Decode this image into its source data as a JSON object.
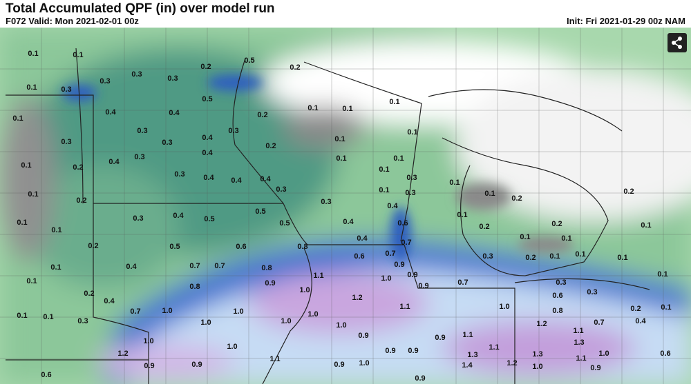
{
  "header": {
    "title": "Total Accumulated QPF (in) over model run",
    "valid": "F072 Valid: Mon 2021-02-01 00z",
    "init": "Init: Fri 2021-01-29 00z NAM"
  },
  "map": {
    "labels": [
      "0.1",
      "0.1",
      "0.3",
      "0.2",
      "0.5",
      "0.2",
      "0.1",
      "0.3",
      "0.3",
      "0.3",
      "0.5",
      "0.1",
      "0.4",
      "0.4",
      "0.2",
      "0.1",
      "0.1",
      "0.1",
      "0.3",
      "0.3",
      "0.3",
      "0.4",
      "0.1",
      "0.3",
      "0.4",
      "0.2",
      "0.1",
      "0.1",
      "0.2",
      "0.4",
      "0.3",
      "0.1",
      "0.1",
      "0.1",
      "0.3",
      "0.4",
      "0.4",
      "0.4",
      "0.3",
      "0.3",
      "0.1",
      "0.1",
      "0.1",
      "0.3",
      "0.1",
      "0.2",
      "0.2",
      "0.2",
      "0.3",
      "0.4",
      "0.1",
      "0.1",
      "0.3",
      "0.4",
      "0.5",
      "0.5",
      "0.5",
      "0.4",
      "0.6",
      "0.1",
      "0.2",
      "0.2",
      "0.1",
      "0.2",
      "0.5",
      "0.6",
      "0.8",
      "0.4",
      "0.7",
      "0.1",
      "0.1",
      "0.1",
      "0.4",
      "0.7",
      "0.7",
      "0.8",
      "0.6",
      "0.7",
      "0.9",
      "0.3",
      "0.2",
      "0.1",
      "0.1",
      "0.1",
      "0.1",
      "0.8",
      "0.9",
      "1.1",
      "1.0",
      "0.9",
      "0.9",
      "0.7",
      "0.3",
      "0.1",
      "0.2",
      "1.0",
      "1.2",
      "0.6",
      "0.3",
      "0.4",
      "1.1",
      "1.0",
      "0.8",
      "0.2",
      "0.1",
      "0.1",
      "0.1",
      "0.3",
      "0.7",
      "1.0",
      "1.0",
      "1.0",
      "1.0",
      "1.0",
      "1.0",
      "1.2",
      "0.7",
      "0.4",
      "1.0",
      "0.9",
      "0.9",
      "1.1",
      "1.1",
      "1.3",
      "1.2",
      "1.0",
      "1.1",
      "0.9",
      "0.9",
      "1.3",
      "1.3",
      "1.0",
      "1.1",
      "0.6",
      "0.9",
      "0.9",
      "1.1",
      "0.9",
      "1.0",
      "1.4",
      "1.2",
      "1.0",
      "0.9",
      "0.6",
      "0.9"
    ]
  }
}
